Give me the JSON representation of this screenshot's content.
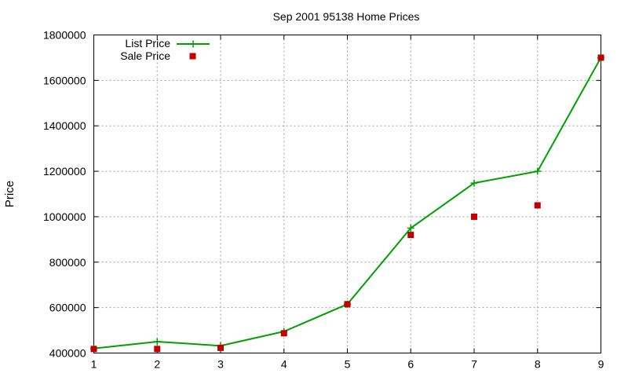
{
  "chart_data": {
    "type": "line",
    "title": "Sep 2001 95138 Home Prices",
    "xlabel": "",
    "ylabel": "Price",
    "x": [
      1,
      2,
      3,
      4,
      5,
      6,
      7,
      8,
      9
    ],
    "xlim": [
      1,
      9
    ],
    "ylim": [
      400000,
      1800000
    ],
    "xticks": [
      "1",
      "2",
      "3",
      "4",
      "5",
      "6",
      "7",
      "8",
      "9"
    ],
    "yticks": [
      "400000",
      "600000",
      "800000",
      "1000000",
      "1200000",
      "1400000",
      "1600000",
      "1800000"
    ],
    "grid": true,
    "legend_position": "top-left",
    "series": [
      {
        "name": "List Price",
        "style": "line-with-plus-markers",
        "color": "#00a000",
        "values": [
          420000,
          450000,
          432000,
          495000,
          615000,
          950000,
          1148000,
          1200000,
          1700000
        ]
      },
      {
        "name": "Sale Price",
        "style": "square-markers",
        "color": "#c00000",
        "values": [
          418000,
          418000,
          423000,
          487000,
          615000,
          920000,
          1000000,
          1050000,
          1700000
        ]
      }
    ]
  }
}
